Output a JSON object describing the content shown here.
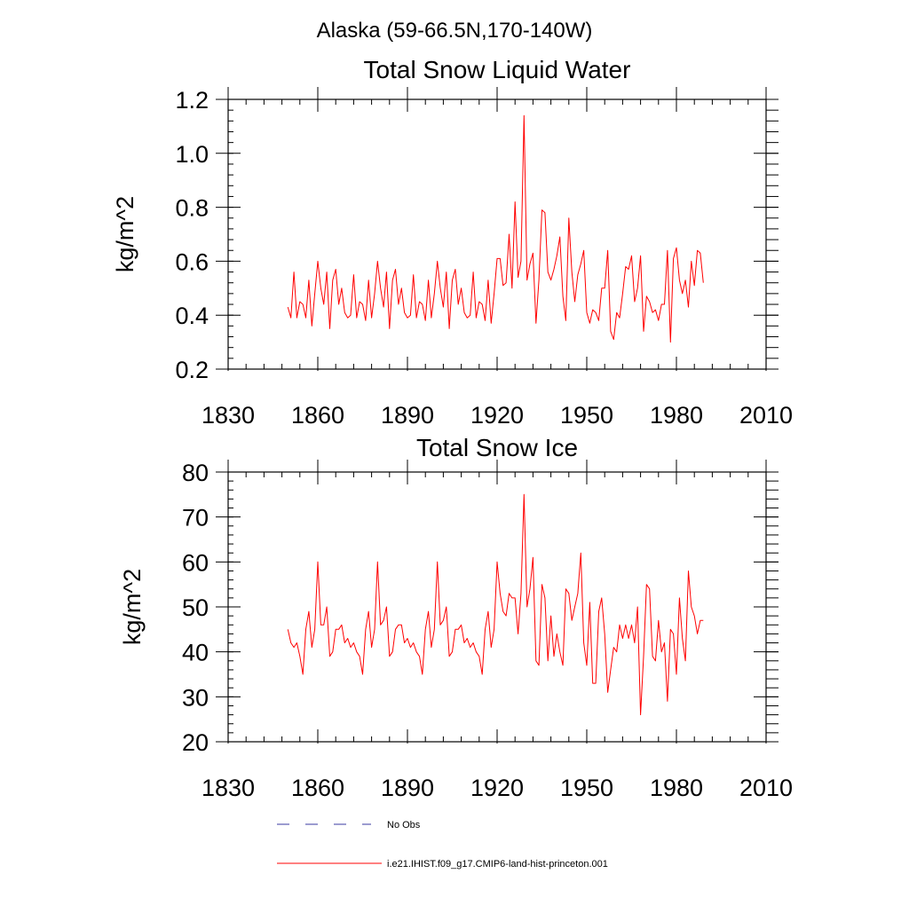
{
  "page_title": "Alaska (59-66.5N,170-140W)",
  "legend": [
    {
      "label": "No Obs",
      "color": "#3a3aa0",
      "style": "dashed"
    },
    {
      "label": "i.e21.IHIST.f09_g17.CMIP6-land-hist-princeton.001",
      "color": "#ff0000",
      "style": "solid"
    }
  ],
  "chart_data": [
    {
      "type": "line",
      "title": "Total Snow Liquid Water",
      "xlabel": "",
      "ylabel": "kg/m^2",
      "xlim": [
        1830,
        2010
      ],
      "ylim": [
        0.2,
        1.2
      ],
      "xticks": [
        1830,
        1860,
        1890,
        1920,
        1950,
        1980,
        2010
      ],
      "xtick_labels": [
        "1830",
        "1860",
        "1890",
        "1920",
        "1950",
        "1980",
        "2010"
      ],
      "yticks": [
        0.2,
        0.4,
        0.6,
        0.8,
        1.0,
        1.2
      ],
      "ytick_labels": [
        "0.2",
        "0.4",
        "0.6",
        "0.8",
        "1.0",
        "1.2"
      ],
      "grid": false,
      "series": [
        {
          "name": "i.e21.IHIST.f09_g17.CMIP6-land-hist-princeton.001",
          "color": "#ff0000",
          "x": [
            1850,
            1851,
            1852,
            1853,
            1854,
            1855,
            1856,
            1857,
            1858,
            1859,
            1860,
            1861,
            1862,
            1863,
            1864,
            1865,
            1866,
            1867,
            1868,
            1869,
            1870,
            1871,
            1872,
            1873,
            1874,
            1875,
            1876,
            1877,
            1878,
            1879,
            1880,
            1881,
            1882,
            1883,
            1884,
            1885,
            1886,
            1887,
            1888,
            1889,
            1890,
            1891,
            1892,
            1893,
            1894,
            1895,
            1896,
            1897,
            1898,
            1899,
            1900,
            1901,
            1902,
            1903,
            1904,
            1905,
            1906,
            1907,
            1908,
            1909,
            1910,
            1911,
            1912,
            1913,
            1914,
            1915,
            1916,
            1917,
            1918,
            1919,
            1920,
            1921,
            1922,
            1923,
            1924,
            1925,
            1926,
            1927,
            1928,
            1929,
            1930,
            1931,
            1932,
            1933,
            1934,
            1935,
            1936,
            1937,
            1938,
            1939,
            1940,
            1941,
            1942,
            1943,
            1944,
            1945,
            1946,
            1947,
            1948,
            1949,
            1950,
            1951,
            1952,
            1953,
            1954,
            1955,
            1956,
            1957,
            1958,
            1959,
            1960,
            1961,
            1962,
            1963,
            1964,
            1965,
            1966,
            1967,
            1968,
            1969,
            1970,
            1971,
            1972,
            1973,
            1974,
            1975,
            1976,
            1977,
            1978,
            1979,
            1980,
            1981,
            1982,
            1983,
            1984,
            1985,
            1986,
            1987,
            1988,
            1989
          ],
          "values": [
            0.43,
            0.39,
            0.56,
            0.39,
            0.45,
            0.44,
            0.39,
            0.53,
            0.36,
            0.48,
            0.6,
            0.5,
            0.44,
            0.56,
            0.35,
            0.53,
            0.57,
            0.44,
            0.5,
            0.41,
            0.39,
            0.4,
            0.55,
            0.39,
            0.45,
            0.44,
            0.38,
            0.53,
            0.39,
            0.48,
            0.6,
            0.5,
            0.43,
            0.56,
            0.35,
            0.53,
            0.57,
            0.44,
            0.5,
            0.41,
            0.39,
            0.4,
            0.55,
            0.39,
            0.45,
            0.44,
            0.38,
            0.53,
            0.39,
            0.48,
            0.6,
            0.5,
            0.43,
            0.56,
            0.35,
            0.53,
            0.57,
            0.44,
            0.5,
            0.41,
            0.39,
            0.4,
            0.56,
            0.39,
            0.45,
            0.44,
            0.38,
            0.53,
            0.37,
            0.48,
            0.61,
            0.61,
            0.51,
            0.52,
            0.7,
            0.5,
            0.82,
            0.54,
            0.6,
            1.14,
            0.53,
            0.59,
            0.63,
            0.37,
            0.53,
            0.79,
            0.78,
            0.56,
            0.53,
            0.57,
            0.62,
            0.69,
            0.47,
            0.38,
            0.76,
            0.56,
            0.45,
            0.55,
            0.59,
            0.64,
            0.41,
            0.37,
            0.42,
            0.41,
            0.38,
            0.5,
            0.5,
            0.64,
            0.34,
            0.31,
            0.41,
            0.39,
            0.48,
            0.58,
            0.57,
            0.62,
            0.45,
            0.5,
            0.62,
            0.34,
            0.47,
            0.45,
            0.41,
            0.42,
            0.38,
            0.44,
            0.44,
            0.64,
            0.3,
            0.61,
            0.65,
            0.53,
            0.48,
            0.53,
            0.43,
            0.6,
            0.51,
            0.64,
            0.63,
            0.52
          ]
        }
      ]
    },
    {
      "type": "line",
      "title": "Total Snow Ice",
      "xlabel": "",
      "ylabel": "kg/m^2",
      "xlim": [
        1830,
        2010
      ],
      "ylim": [
        20,
        80
      ],
      "xticks": [
        1830,
        1860,
        1890,
        1920,
        1950,
        1980,
        2010
      ],
      "xtick_labels": [
        "1830",
        "1860",
        "1890",
        "1920",
        "1950",
        "1980",
        "2010"
      ],
      "yticks": [
        20,
        30,
        40,
        50,
        60,
        70,
        80
      ],
      "ytick_labels": [
        "20",
        "30",
        "40",
        "50",
        "60",
        "70",
        "80"
      ],
      "grid": false,
      "series": [
        {
          "name": "i.e21.IHIST.f09_g17.CMIP6-land-hist-princeton.001",
          "color": "#ff0000",
          "x": [
            1850,
            1851,
            1852,
            1853,
            1854,
            1855,
            1856,
            1857,
            1858,
            1859,
            1860,
            1861,
            1862,
            1863,
            1864,
            1865,
            1866,
            1867,
            1868,
            1869,
            1870,
            1871,
            1872,
            1873,
            1874,
            1875,
            1876,
            1877,
            1878,
            1879,
            1880,
            1881,
            1882,
            1883,
            1884,
            1885,
            1886,
            1887,
            1888,
            1889,
            1890,
            1891,
            1892,
            1893,
            1894,
            1895,
            1896,
            1897,
            1898,
            1899,
            1900,
            1901,
            1902,
            1903,
            1904,
            1905,
            1906,
            1907,
            1908,
            1909,
            1910,
            1911,
            1912,
            1913,
            1914,
            1915,
            1916,
            1917,
            1918,
            1919,
            1920,
            1921,
            1922,
            1923,
            1924,
            1925,
            1926,
            1927,
            1928,
            1929,
            1930,
            1931,
            1932,
            1933,
            1934,
            1935,
            1936,
            1937,
            1938,
            1939,
            1940,
            1941,
            1942,
            1943,
            1944,
            1945,
            1946,
            1947,
            1948,
            1949,
            1950,
            1951,
            1952,
            1953,
            1954,
            1955,
            1956,
            1957,
            1958,
            1959,
            1960,
            1961,
            1962,
            1963,
            1964,
            1965,
            1966,
            1967,
            1968,
            1969,
            1970,
            1971,
            1972,
            1973,
            1974,
            1975,
            1976,
            1977,
            1978,
            1979,
            1980,
            1981,
            1982,
            1983,
            1984,
            1985,
            1986,
            1987,
            1988,
            1989
          ],
          "values": [
            45,
            42,
            41,
            42,
            39,
            35,
            45,
            49,
            41,
            45,
            60,
            46,
            46,
            50,
            39,
            40,
            45,
            45,
            46,
            42,
            43,
            41,
            42,
            40,
            39,
            35,
            45,
            49,
            41,
            45,
            60,
            46,
            47,
            50,
            39,
            40,
            45,
            46,
            46,
            42,
            43,
            41,
            42,
            40,
            39,
            35,
            45,
            49,
            41,
            45,
            60,
            46,
            47,
            50,
            39,
            40,
            45,
            45,
            46,
            42,
            43,
            41,
            42,
            40,
            39,
            35,
            45,
            49,
            41,
            45,
            60,
            53,
            49,
            48,
            53,
            52,
            52,
            44,
            53,
            75,
            50,
            54,
            61,
            38,
            37,
            55,
            52,
            38,
            48,
            39,
            44,
            40,
            37,
            54,
            53,
            47,
            50,
            53,
            62,
            42,
            37,
            51,
            33,
            33,
            49,
            52,
            44,
            31,
            36,
            41,
            40,
            46,
            43,
            46,
            43,
            46,
            42,
            50,
            26,
            39,
            55,
            54,
            39,
            38,
            47,
            40,
            42,
            29,
            45,
            44,
            35,
            52,
            43,
            38,
            58,
            50,
            48,
            44,
            47,
            47
          ]
        }
      ]
    }
  ]
}
